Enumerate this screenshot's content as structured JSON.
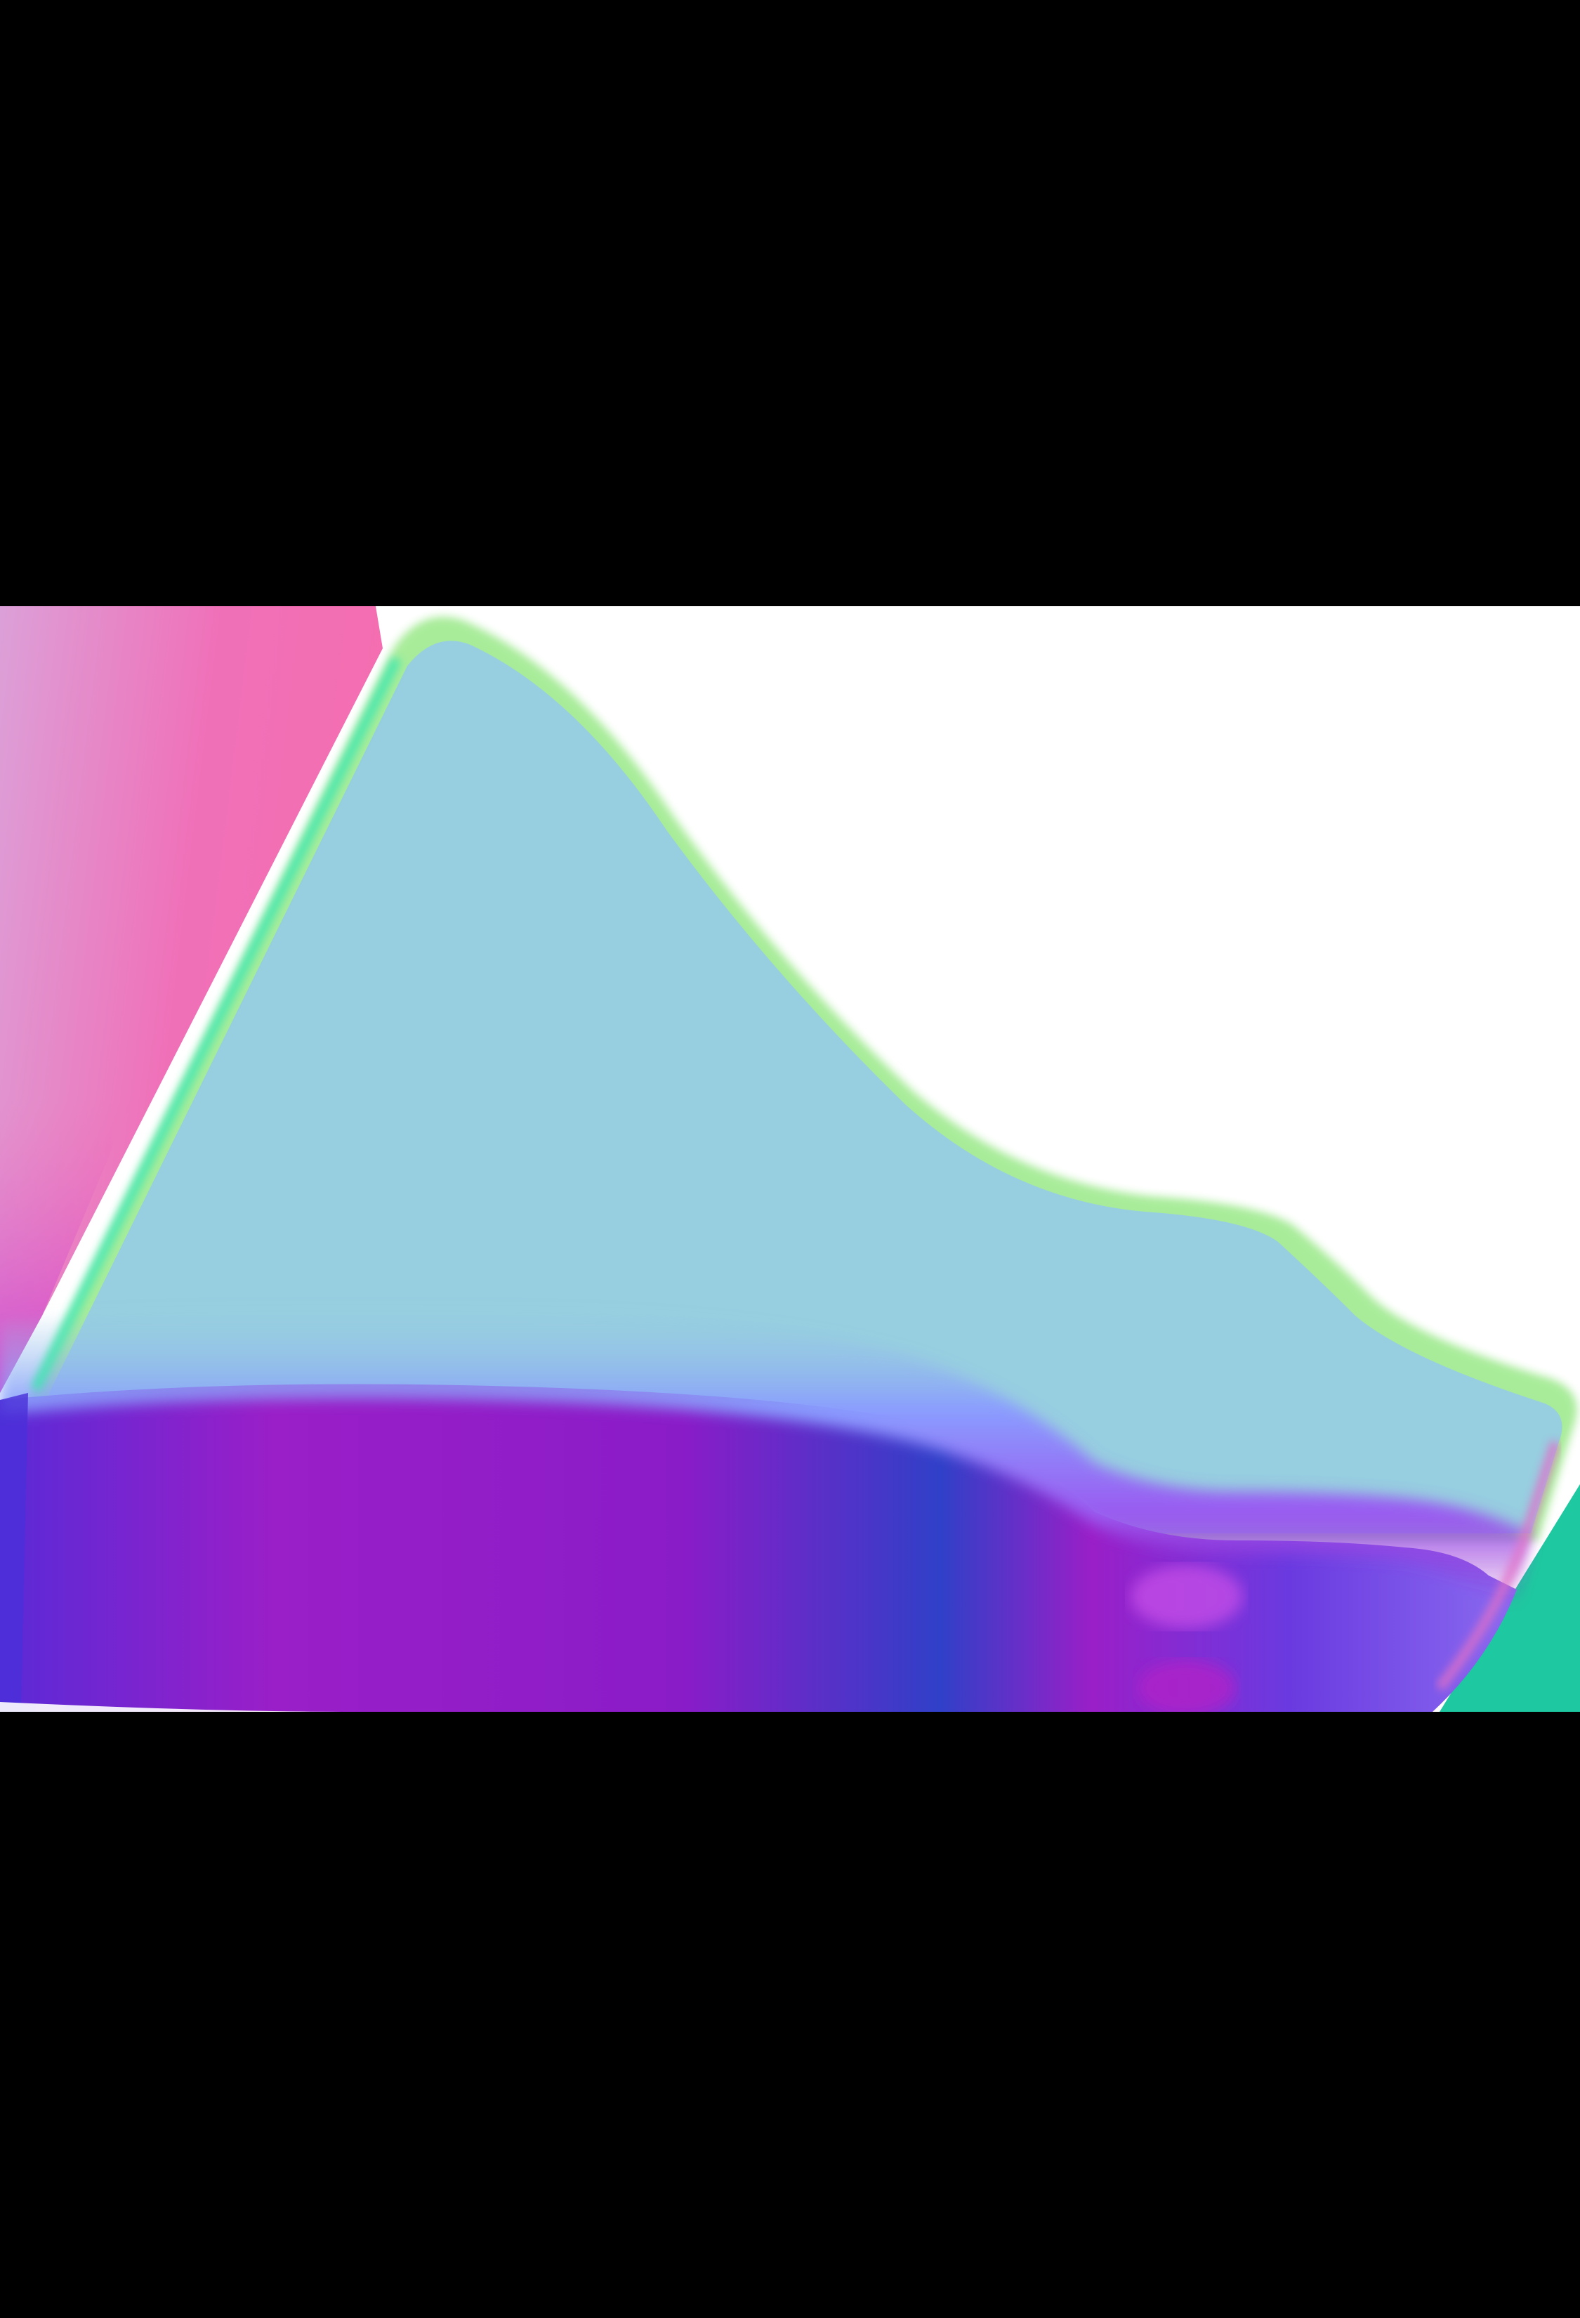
{
  "scene": {
    "description_kind": "surface-normal render",
    "colors": {
      "letterbox": "#000000",
      "background": "#ffffff",
      "face_up": "#97cee0",
      "rim_green": "#8ff0a0",
      "rim_yellow": "#d8e6a0",
      "edge_blue": "#6a8cff",
      "base_purple": "#9a1fc8",
      "base_indigo": "#5a2ad6",
      "base_navy": "#2e48c8",
      "left_pink": "#f070b8",
      "left_lilac": "#dca0d8",
      "right_teal": "#1ec8a0"
    }
  }
}
